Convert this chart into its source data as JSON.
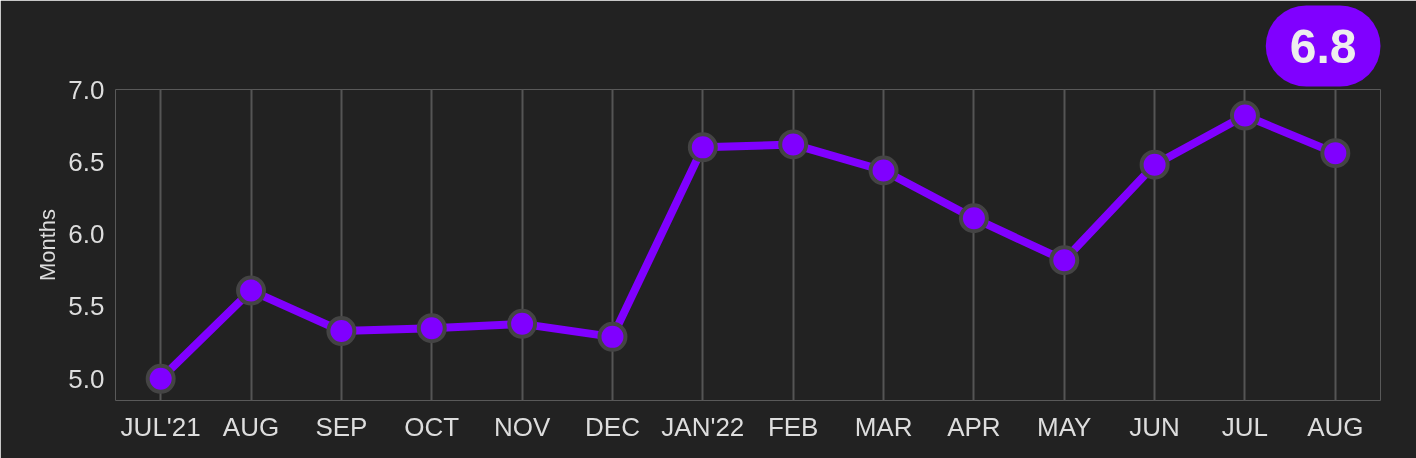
{
  "chart_data": {
    "type": "line",
    "ylabel": "Months",
    "categories": [
      "JUL'21",
      "AUG",
      "SEP",
      "OCT",
      "NOV",
      "DEC",
      "JAN'22",
      "FEB",
      "MAR",
      "APR",
      "MAY",
      "JUN",
      "JUL",
      "AUG"
    ],
    "series": [
      {
        "color": "#8000ff",
        "values": [
          5.0,
          5.61,
          5.33,
          5.35,
          5.38,
          5.29,
          6.6,
          6.62,
          6.44,
          6.11,
          5.82,
          6.48,
          6.82,
          6.56
        ]
      }
    ],
    "ylim": [
      4.85,
      7.0
    ],
    "yticks": [
      {
        "value": 5,
        "label": "5.0"
      },
      {
        "value": 5.5,
        "label": "5.5"
      },
      {
        "value": 6,
        "label": "6.0"
      },
      {
        "value": 6.5,
        "label": "6.5"
      },
      {
        "value": 7,
        "label": "7.0"
      }
    ],
    "grid": "x",
    "marker": "circle",
    "line_style": "solid",
    "annotations": [
      "6.8"
    ]
  }
}
